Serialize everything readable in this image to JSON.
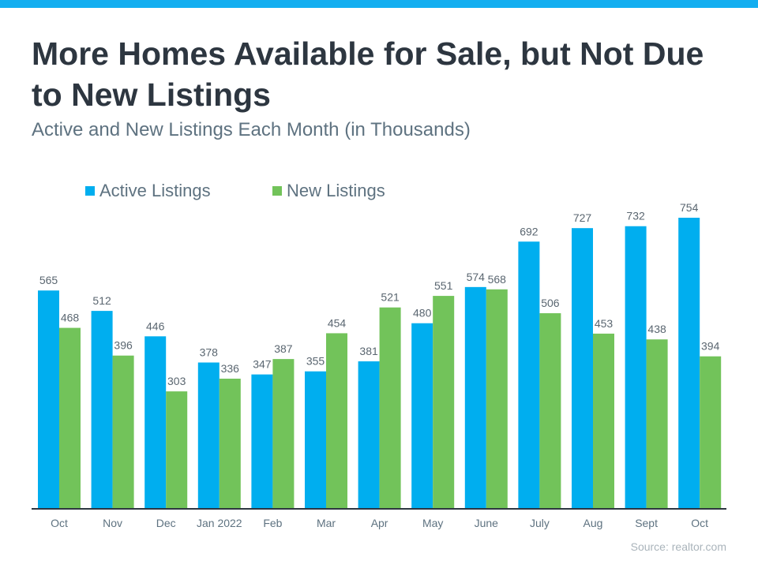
{
  "title": "More Homes Available for Sale, but Not Due to New Listings",
  "subtitle": "Active and New Listings Each Month (in Thousands)",
  "source": "Source: realtor.com",
  "chart_data": {
    "type": "bar",
    "title": "More Homes Available for Sale, but Not Due to New Listings",
    "subtitle": "Active and New Listings Each Month (in Thousands)",
    "categories": [
      "Oct",
      "Nov",
      "Dec",
      "Jan 2022",
      "Feb",
      "Mar",
      "Apr",
      "May",
      "June",
      "July",
      "Aug",
      "Sept",
      "Oct"
    ],
    "series": [
      {
        "name": "Active Listings",
        "color": "#00aeef",
        "values": [
          565,
          512,
          446,
          378,
          347,
          355,
          381,
          480,
          574,
          692,
          727,
          732,
          754
        ]
      },
      {
        "name": "New Listings",
        "color": "#72c35a",
        "values": [
          468,
          396,
          303,
          336,
          387,
          454,
          521,
          551,
          568,
          506,
          453,
          438,
          394
        ]
      }
    ],
    "ylim": [
      0,
      754
    ],
    "grid": false,
    "legend": "top-left",
    "data_labels": true
  }
}
